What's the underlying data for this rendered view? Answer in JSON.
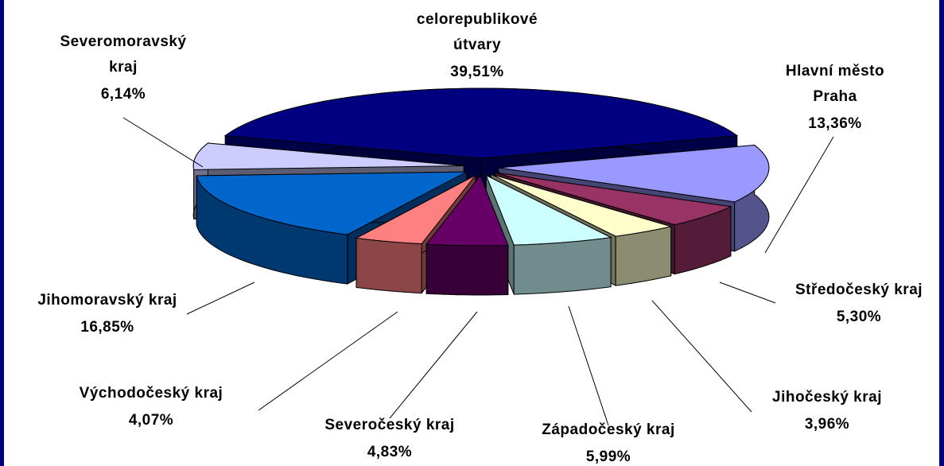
{
  "chart_data": {
    "type": "pie",
    "categories": [
      "celorepublikové útvary",
      "Hlavní město Praha",
      "Středočeský kraj",
      "Jihočeský kraj",
      "Západočeský kraj",
      "Severočeský kraj",
      "Východočeský kraj",
      "Jihomoravský kraj",
      "Severomoravský kraj"
    ],
    "values": [
      39.51,
      13.36,
      5.3,
      3.96,
      5.99,
      4.83,
      4.07,
      16.85,
      6.14
    ],
    "value_labels": [
      "39,51%",
      "13,36%",
      "5,30%",
      "3,96%",
      "5,99%",
      "4,83%",
      "4,07%",
      "16,85%",
      "6,14%"
    ],
    "colors": [
      "#000080",
      "#9999ff",
      "#993366",
      "#ffffcc",
      "#ccffff",
      "#660066",
      "#ff8080",
      "#0066cc",
      "#ccccff"
    ]
  }
}
